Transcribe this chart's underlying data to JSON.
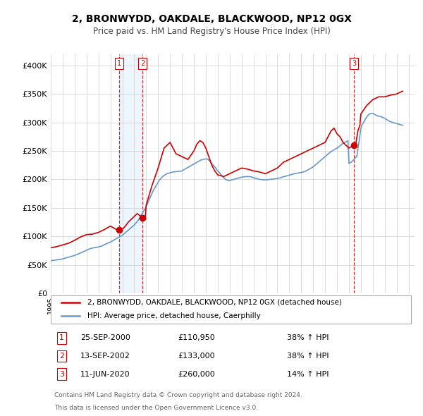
{
  "title": "2, BRONWYDD, OAKDALE, BLACKWOOD, NP12 0GX",
  "subtitle": "Price paid vs. HM Land Registry's House Price Index (HPI)",
  "legend_line1": "2, BRONWYDD, OAKDALE, BLACKWOOD, NP12 0GX (detached house)",
  "legend_line2": "HPI: Average price, detached house, Caerphilly",
  "footer1": "Contains HM Land Registry data © Crown copyright and database right 2024.",
  "footer2": "This data is licensed under the Open Government Licence v3.0.",
  "sale_color": "#cc0000",
  "hpi_color": "#6699cc",
  "sale_dot_color": "#cc0000",
  "marker_bg": "#ffdddd",
  "ylim": [
    0,
    420000
  ],
  "yticks": [
    0,
    50000,
    100000,
    150000,
    200000,
    250000,
    300000,
    350000,
    400000
  ],
  "ytick_labels": [
    "£0",
    "£50K",
    "£100K",
    "£150K",
    "£200K",
    "£250K",
    "£300K",
    "£350K",
    "£400K"
  ],
  "xlim_start": 1995.0,
  "xlim_end": 2025.5,
  "sales": [
    {
      "date": 2000.73,
      "price": 110950,
      "label": "1"
    },
    {
      "date": 2002.7,
      "price": 133000,
      "label": "2"
    },
    {
      "date": 2020.44,
      "price": 260000,
      "label": "3"
    }
  ],
  "table_entries": [
    {
      "num": "1",
      "date": "25-SEP-2000",
      "price": "£110,950",
      "pct": "38% ↑ HPI"
    },
    {
      "num": "2",
      "date": "13-SEP-2002",
      "price": "£133,000",
      "pct": "38% ↑ HPI"
    },
    {
      "num": "3",
      "date": "11-JUN-2020",
      "price": "£260,000",
      "pct": "14% ↑ HPI"
    }
  ],
  "hpi_data": {
    "years": [
      1995.0,
      1995.083,
      1995.167,
      1995.25,
      1995.333,
      1995.417,
      1995.5,
      1995.583,
      1995.667,
      1995.75,
      1995.833,
      1995.917,
      1996.0,
      1996.083,
      1996.167,
      1996.25,
      1996.333,
      1996.417,
      1996.5,
      1996.583,
      1996.667,
      1996.75,
      1996.833,
      1996.917,
      1997.0,
      1997.083,
      1997.167,
      1997.25,
      1997.333,
      1997.417,
      1997.5,
      1997.583,
      1997.667,
      1997.75,
      1997.833,
      1997.917,
      1998.0,
      1998.083,
      1998.167,
      1998.25,
      1998.333,
      1998.417,
      1998.5,
      1998.583,
      1998.667,
      1998.75,
      1998.833,
      1998.917,
      1999.0,
      1999.083,
      1999.167,
      1999.25,
      1999.333,
      1999.417,
      1999.5,
      1999.583,
      1999.667,
      1999.75,
      1999.833,
      1999.917,
      2000.0,
      2000.083,
      2000.167,
      2000.25,
      2000.333,
      2000.417,
      2000.5,
      2000.583,
      2000.667,
      2000.75,
      2000.833,
      2000.917,
      2001.0,
      2001.083,
      2001.167,
      2001.25,
      2001.333,
      2001.417,
      2001.5,
      2001.583,
      2001.667,
      2001.75,
      2001.833,
      2001.917,
      2002.0,
      2002.083,
      2002.167,
      2002.25,
      2002.333,
      2002.417,
      2002.5,
      2002.583,
      2002.667,
      2002.75,
      2002.833,
      2002.917,
      2003.0,
      2003.083,
      2003.167,
      2003.25,
      2003.333,
      2003.417,
      2003.5,
      2003.583,
      2003.667,
      2003.75,
      2003.833,
      2003.917,
      2004.0,
      2004.083,
      2004.167,
      2004.25,
      2004.333,
      2004.417,
      2004.5,
      2004.583,
      2004.667,
      2004.75,
      2004.833,
      2004.917,
      2005.0,
      2005.083,
      2005.167,
      2005.25,
      2005.333,
      2005.417,
      2005.5,
      2005.583,
      2005.667,
      2005.75,
      2005.833,
      2005.917,
      2006.0,
      2006.083,
      2006.167,
      2006.25,
      2006.333,
      2006.417,
      2006.5,
      2006.583,
      2006.667,
      2006.75,
      2006.833,
      2006.917,
      2007.0,
      2007.083,
      2007.167,
      2007.25,
      2007.333,
      2007.417,
      2007.5,
      2007.583,
      2007.667,
      2007.75,
      2007.833,
      2007.917,
      2008.0,
      2008.083,
      2008.167,
      2008.25,
      2008.333,
      2008.417,
      2008.5,
      2008.583,
      2008.667,
      2008.75,
      2008.833,
      2008.917,
      2009.0,
      2009.083,
      2009.167,
      2009.25,
      2009.333,
      2009.417,
      2009.5,
      2009.583,
      2009.667,
      2009.75,
      2009.833,
      2009.917,
      2010.0,
      2010.083,
      2010.167,
      2010.25,
      2010.333,
      2010.417,
      2010.5,
      2010.583,
      2010.667,
      2010.75,
      2010.833,
      2010.917,
      2011.0,
      2011.083,
      2011.167,
      2011.25,
      2011.333,
      2011.417,
      2011.5,
      2011.583,
      2011.667,
      2011.75,
      2011.833,
      2011.917,
      2012.0,
      2012.083,
      2012.167,
      2012.25,
      2012.333,
      2012.417,
      2012.5,
      2012.583,
      2012.667,
      2012.75,
      2012.833,
      2012.917,
      2013.0,
      2013.083,
      2013.167,
      2013.25,
      2013.333,
      2013.417,
      2013.5,
      2013.583,
      2013.667,
      2013.75,
      2013.833,
      2013.917,
      2014.0,
      2014.083,
      2014.167,
      2014.25,
      2014.333,
      2014.417,
      2014.5,
      2014.583,
      2014.667,
      2014.75,
      2014.833,
      2014.917,
      2015.0,
      2015.083,
      2015.167,
      2015.25,
      2015.333,
      2015.417,
      2015.5,
      2015.583,
      2015.667,
      2015.75,
      2015.833,
      2015.917,
      2016.0,
      2016.083,
      2016.167,
      2016.25,
      2016.333,
      2016.417,
      2016.5,
      2016.583,
      2016.667,
      2016.75,
      2016.833,
      2016.917,
      2017.0,
      2017.083,
      2017.167,
      2017.25,
      2017.333,
      2017.417,
      2017.5,
      2017.583,
      2017.667,
      2017.75,
      2017.833,
      2017.917,
      2018.0,
      2018.083,
      2018.167,
      2018.25,
      2018.333,
      2018.417,
      2018.5,
      2018.583,
      2018.667,
      2018.75,
      2018.833,
      2018.917,
      2019.0,
      2019.083,
      2019.167,
      2019.25,
      2019.333,
      2019.417,
      2019.5,
      2019.583,
      2019.667,
      2019.75,
      2019.833,
      2019.917,
      2020.0,
      2020.083,
      2020.167,
      2020.25,
      2020.333,
      2020.417,
      2020.5,
      2020.583,
      2020.667,
      2020.75,
      2020.833,
      2020.917,
      2021.0,
      2021.083,
      2021.167,
      2021.25,
      2021.333,
      2021.417,
      2021.5,
      2021.583,
      2021.667,
      2021.75,
      2021.833,
      2021.917,
      2022.0,
      2022.083,
      2022.167,
      2022.25,
      2022.333,
      2022.417,
      2022.5,
      2022.583,
      2022.667,
      2022.75,
      2022.833,
      2022.917,
      2023.0,
      2023.083,
      2023.167,
      2023.25,
      2023.333,
      2023.417,
      2023.5,
      2023.583,
      2023.667,
      2023.75,
      2023.833,
      2023.917,
      2024.0,
      2024.083,
      2024.167,
      2024.25,
      2024.333,
      2024.417,
      2024.5
    ],
    "values": [
      57000,
      57500,
      57800,
      58000,
      58200,
      58500,
      58700,
      59000,
      59200,
      59500,
      59700,
      60000,
      60500,
      61000,
      61500,
      62000,
      62500,
      63000,
      63500,
      64000,
      64500,
      65000,
      65500,
      66000,
      66500,
      67200,
      67900,
      68600,
      69300,
      70000,
      70800,
      71600,
      72400,
      73200,
      74000,
      74800,
      75600,
      76400,
      77200,
      78000,
      78500,
      79000,
      79500,
      79800,
      80100,
      80400,
      80700,
      81000,
      81500,
      82000,
      82500,
      83000,
      83800,
      84600,
      85400,
      86200,
      87000,
      87800,
      88600,
      89400,
      90000,
      91000,
      92000,
      93000,
      94000,
      95000,
      96000,
      97000,
      98000,
      99000,
      100000,
      101000,
      102000,
      103500,
      105000,
      106500,
      108000,
      109500,
      111000,
      112500,
      114000,
      115500,
      117000,
      118500,
      120000,
      122000,
      124000,
      126000,
      128000,
      131000,
      134000,
      137000,
      140000,
      143000,
      146000,
      149000,
      152000,
      156000,
      160000,
      164000,
      168000,
      172000,
      176000,
      180000,
      183000,
      186000,
      189000,
      192000,
      195000,
      198000,
      200000,
      202000,
      204000,
      206000,
      207000,
      208000,
      209000,
      210000,
      210500,
      211000,
      211500,
      212000,
      212500,
      213000,
      213200,
      213400,
      213600,
      213800,
      214000,
      214200,
      214400,
      214600,
      215000,
      216000,
      217000,
      218000,
      219000,
      220000,
      221000,
      222000,
      223000,
      224000,
      225000,
      226000,
      227000,
      228000,
      229000,
      230000,
      231000,
      232000,
      233000,
      234000,
      234500,
      235000,
      235300,
      235600,
      235900,
      235600,
      235300,
      234000,
      232000,
      230000,
      228000,
      226000,
      224000,
      222000,
      220000,
      217000,
      215000,
      213000,
      211000,
      209000,
      207000,
      205000,
      203000,
      201000,
      200000,
      199000,
      198500,
      198000,
      198000,
      198500,
      199000,
      199500,
      200000,
      200500,
      201000,
      201500,
      202000,
      202500,
      203000,
      203500,
      204000,
      204200,
      204400,
      204600,
      204800,
      205000,
      205000,
      205000,
      204800,
      204600,
      204000,
      203500,
      203000,
      202500,
      202000,
      201500,
      201000,
      200500,
      200000,
      199800,
      199600,
      199400,
      199200,
      199000,
      199000,
      199200,
      199400,
      199600,
      199800,
      200000,
      200200,
      200400,
      200600,
      200800,
      201000,
      201200,
      201500,
      202000,
      202500,
      203000,
      203500,
      204000,
      204500,
      205000,
      205500,
      206000,
      206500,
      207000,
      207500,
      208000,
      208500,
      209000,
      209500,
      210000,
      210300,
      210600,
      210900,
      211200,
      211500,
      211800,
      212000,
      212500,
      213000,
      213500,
      214000,
      215000,
      216000,
      217000,
      218000,
      219000,
      220000,
      221000,
      222000,
      223500,
      225000,
      226500,
      228000,
      229500,
      231000,
      232500,
      234000,
      235500,
      237000,
      238500,
      240000,
      241500,
      243000,
      244500,
      246000,
      247500,
      249000,
      250000,
      251000,
      252000,
      253000,
      254000,
      255000,
      256000,
      257500,
      259000,
      260500,
      262000,
      263000,
      264000,
      265000,
      266000,
      267000,
      268000,
      228000,
      229000,
      230000,
      231500,
      233000,
      235000,
      237000,
      239000,
      241000,
      253000,
      265000,
      277000,
      289000,
      295000,
      298000,
      301000,
      304000,
      307000,
      310000,
      312000,
      314000,
      315000,
      315500,
      316000,
      316000,
      315000,
      314000,
      313000,
      312000,
      311500,
      311000,
      310500,
      310000,
      309500,
      309000,
      308000,
      307000,
      306000,
      305000,
      304000,
      303000,
      302000,
      301000,
      300500,
      300000,
      299500,
      299000,
      298500,
      298000,
      297500,
      297000,
      296500,
      296000,
      295500,
      295000
    ]
  },
  "sale_price_data": {
    "years": [
      1995.0,
      1995.5,
      1996.0,
      1996.5,
      1997.0,
      1997.5,
      1998.0,
      1998.5,
      1999.0,
      1999.5,
      2000.0,
      2000.25,
      2000.5,
      2000.73,
      2000.917,
      2001.0,
      2001.25,
      2001.5,
      2001.75,
      2002.0,
      2002.25,
      2002.5,
      2002.7,
      2002.917,
      2003.0,
      2003.5,
      2004.0,
      2004.5,
      2005.0,
      2005.5,
      2006.0,
      2006.5,
      2007.0,
      2007.25,
      2007.5,
      2007.75,
      2008.0,
      2008.25,
      2008.5,
      2008.75,
      2009.0,
      2009.5,
      2010.0,
      2010.5,
      2011.0,
      2011.5,
      2012.0,
      2012.5,
      2013.0,
      2013.5,
      2014.0,
      2014.5,
      2015.0,
      2015.5,
      2016.0,
      2016.5,
      2017.0,
      2017.5,
      2018.0,
      2018.25,
      2018.5,
      2018.75,
      2019.0,
      2019.25,
      2019.5,
      2019.75,
      2020.0,
      2020.25,
      2020.44,
      2020.583,
      2020.75,
      2020.917,
      2021.0,
      2021.5,
      2022.0,
      2022.5,
      2023.0,
      2023.5,
      2024.0,
      2024.5
    ],
    "values": [
      80000,
      82000,
      85000,
      88000,
      93000,
      99000,
      103000,
      104000,
      107000,
      112000,
      118000,
      115000,
      112000,
      110950,
      108000,
      112000,
      118000,
      125000,
      130000,
      135000,
      140000,
      136000,
      133000,
      132000,
      155000,
      190000,
      220000,
      255000,
      265000,
      245000,
      240000,
      235000,
      250000,
      262000,
      268000,
      265000,
      255000,
      240000,
      225000,
      215000,
      208000,
      205000,
      210000,
      215000,
      220000,
      218000,
      215000,
      213000,
      210000,
      215000,
      220000,
      230000,
      235000,
      240000,
      245000,
      250000,
      255000,
      260000,
      265000,
      275000,
      285000,
      290000,
      280000,
      275000,
      265000,
      260000,
      255000,
      258000,
      260000,
      263000,
      285000,
      295000,
      315000,
      330000,
      340000,
      345000,
      345000,
      348000,
      350000,
      355000
    ]
  }
}
